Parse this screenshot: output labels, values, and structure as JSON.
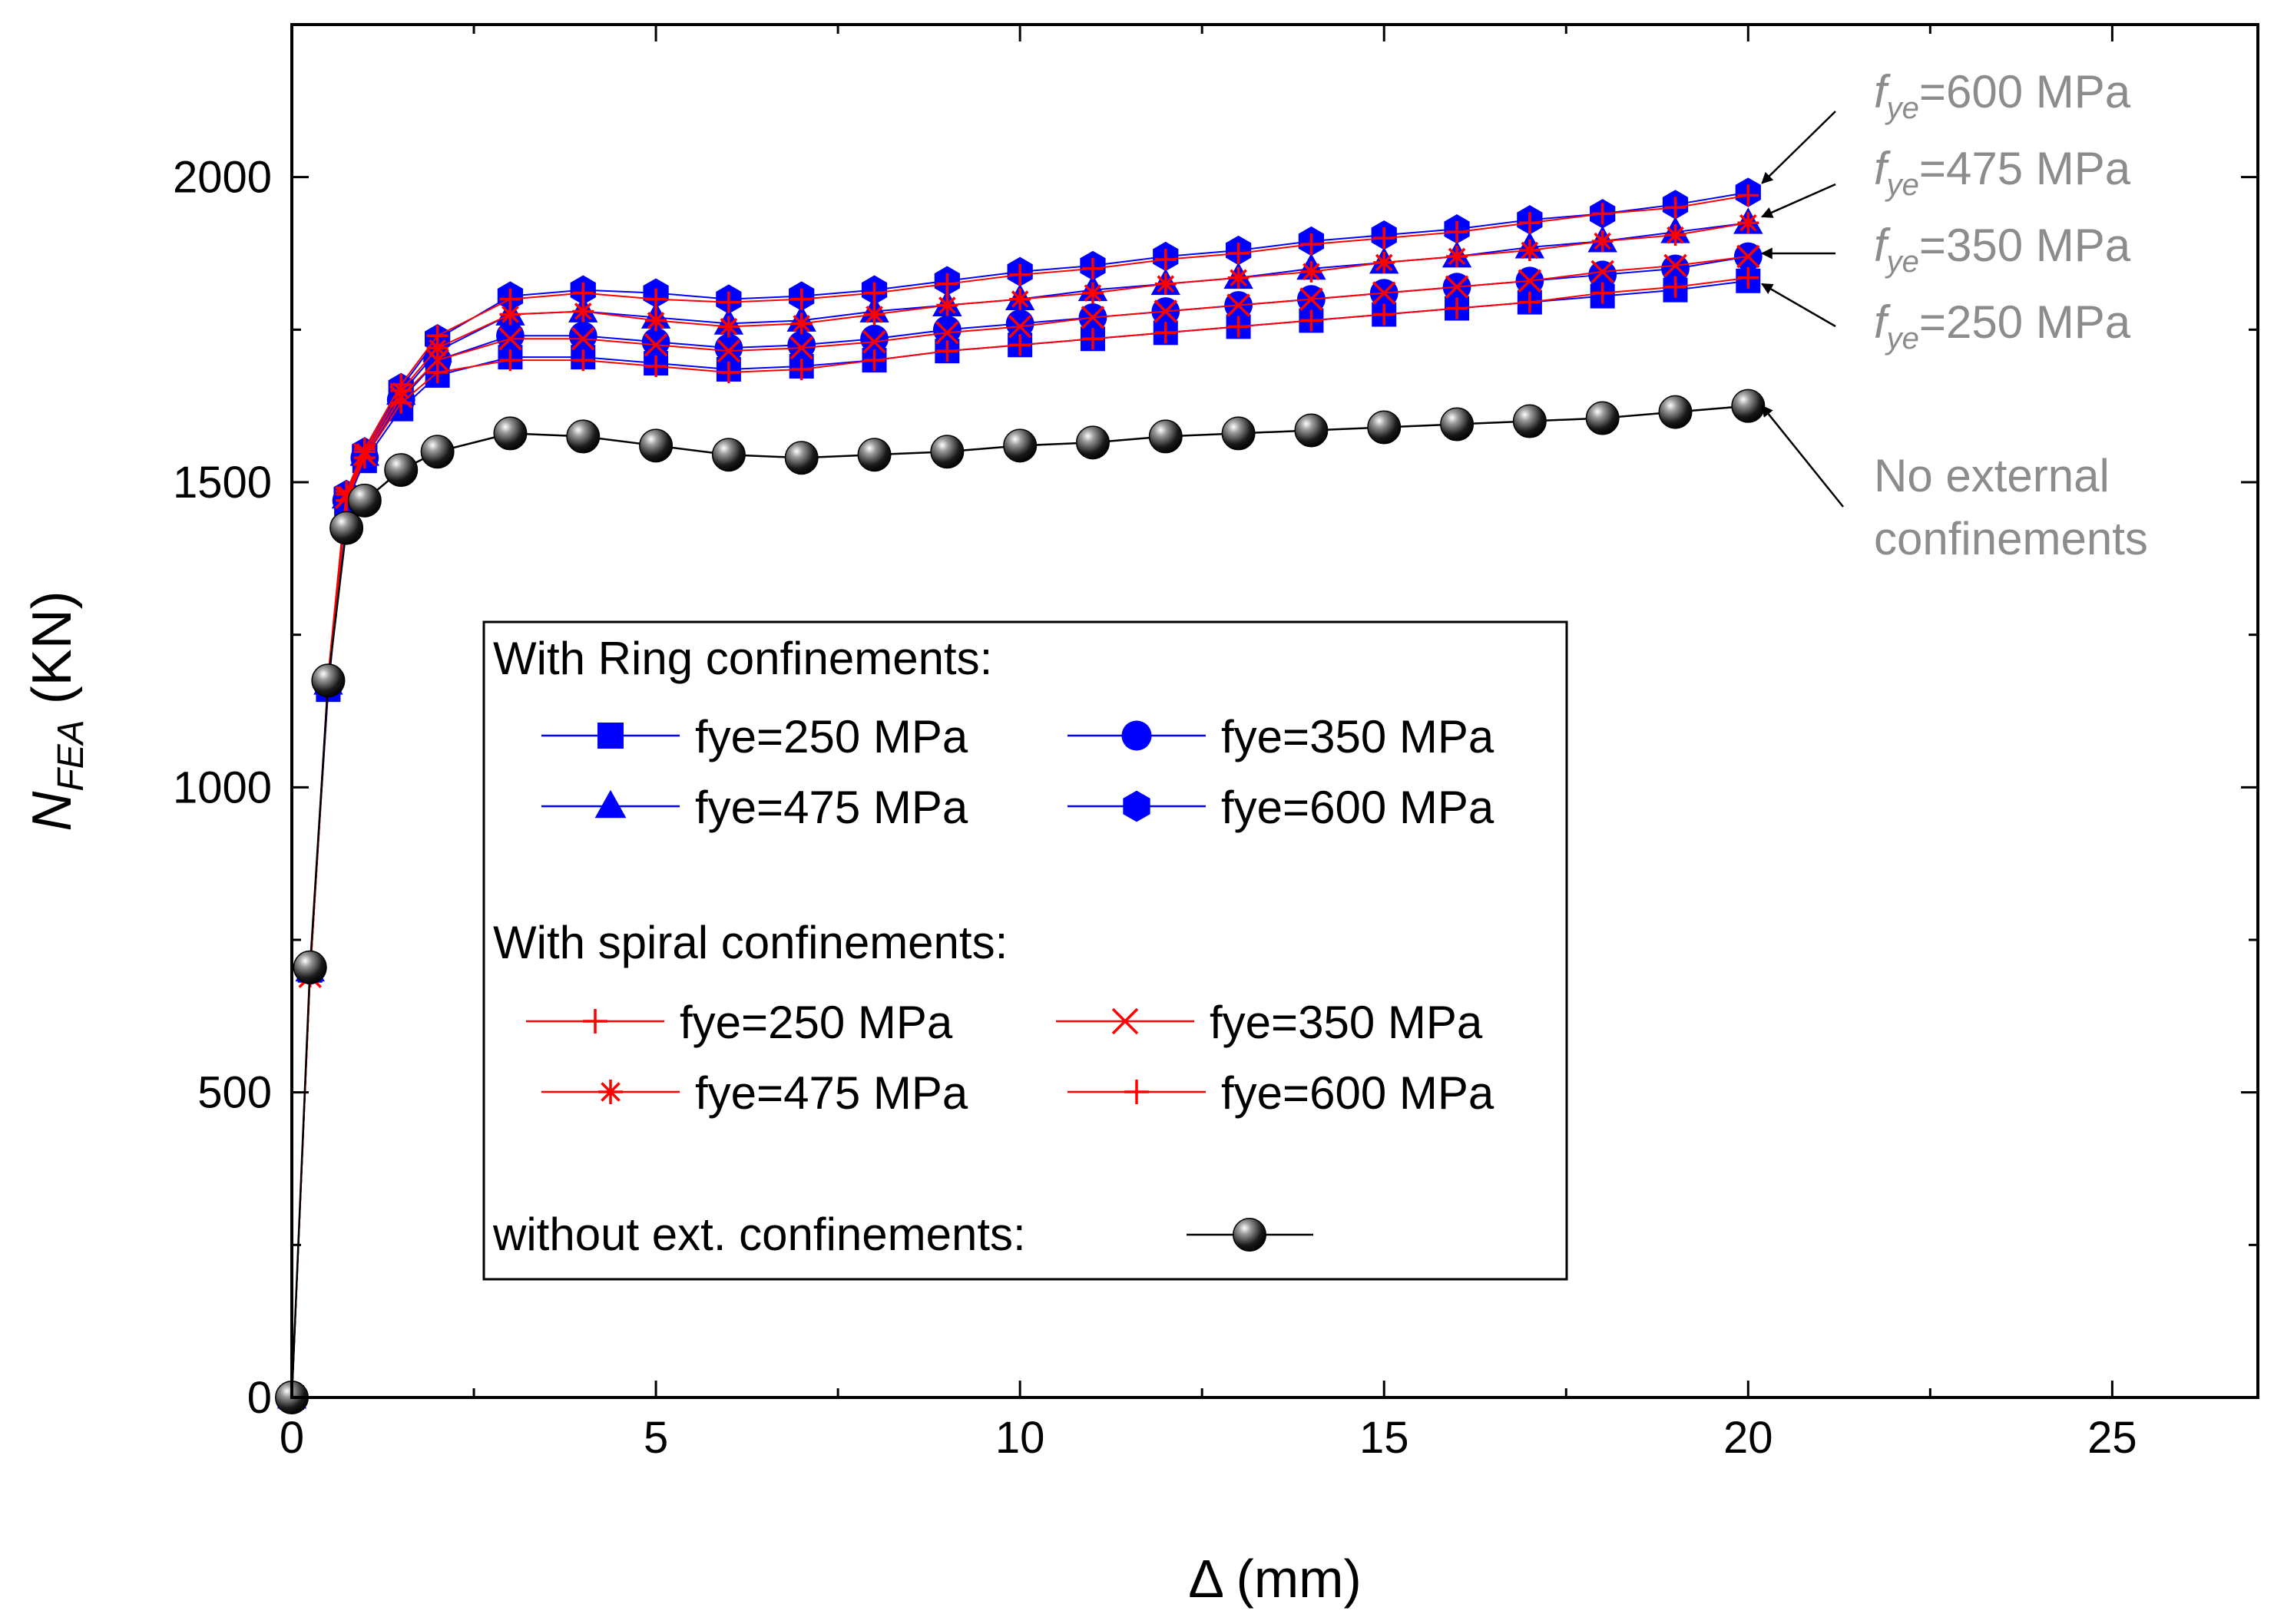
{
  "chart_data": {
    "type": "line",
    "title": "",
    "xlabel": "Δ (mm)",
    "ylabel_main": "N",
    "ylabel_sub": "FEA",
    "ylabel_unit": " (KN)",
    "xlim": [
      0,
      27
    ],
    "ylim": [
      0,
      2250
    ],
    "xticks": [
      0,
      5,
      10,
      15,
      20,
      25
    ],
    "yticks": [
      0,
      500,
      1000,
      1500,
      2000
    ],
    "x": [
      0,
      0.25,
      0.5,
      0.75,
      1,
      1.5,
      2,
      3,
      4,
      5,
      6,
      7,
      8,
      9,
      10,
      11,
      12,
      13,
      14,
      15,
      16,
      17,
      18,
      19,
      20
    ],
    "series": [
      {
        "name": "fye=250 MPa",
        "group": "ring",
        "marker": "square",
        "color": "#0000ff",
        "values": [
          0,
          700,
          1160,
          1465,
          1535,
          1620,
          1675,
          1705,
          1705,
          1695,
          1685,
          1690,
          1700,
          1715,
          1725,
          1735,
          1745,
          1755,
          1765,
          1775,
          1785,
          1795,
          1805,
          1815,
          1830
        ]
      },
      {
        "name": "fye=350 MPa",
        "group": "ring",
        "marker": "circle",
        "color": "#0000ff",
        "values": [
          0,
          700,
          1165,
          1470,
          1540,
          1635,
          1700,
          1740,
          1740,
          1730,
          1720,
          1725,
          1735,
          1750,
          1760,
          1770,
          1780,
          1790,
          1800,
          1810,
          1820,
          1830,
          1840,
          1850,
          1870
        ]
      },
      {
        "name": "fye=475 MPa",
        "group": "ring",
        "marker": "triangle",
        "color": "#0000ff",
        "values": [
          0,
          700,
          1170,
          1475,
          1545,
          1645,
          1715,
          1775,
          1780,
          1770,
          1760,
          1765,
          1780,
          1790,
          1800,
          1815,
          1825,
          1835,
          1850,
          1860,
          1870,
          1885,
          1895,
          1910,
          1925
        ]
      },
      {
        "name": "fye=600 MPa",
        "group": "ring",
        "marker": "hexagon",
        "color": "#0000ff",
        "values": [
          0,
          700,
          1175,
          1480,
          1550,
          1655,
          1735,
          1805,
          1815,
          1810,
          1800,
          1805,
          1815,
          1830,
          1845,
          1855,
          1870,
          1880,
          1895,
          1905,
          1915,
          1930,
          1940,
          1955,
          1975
        ]
      },
      {
        "name": "fye=250 MPa",
        "group": "spiral",
        "marker": "plus",
        "color": "#ff0000",
        "values": [
          0,
          690,
          1170,
          1470,
          1540,
          1630,
          1680,
          1700,
          1700,
          1690,
          1680,
          1685,
          1700,
          1715,
          1725,
          1735,
          1745,
          1755,
          1765,
          1775,
          1785,
          1795,
          1810,
          1820,
          1835
        ]
      },
      {
        "name": "fye=350 MPa",
        "group": "spiral",
        "marker": "x",
        "color": "#ff0000",
        "values": [
          0,
          690,
          1175,
          1475,
          1545,
          1640,
          1700,
          1735,
          1735,
          1725,
          1715,
          1720,
          1730,
          1745,
          1755,
          1770,
          1780,
          1790,
          1800,
          1810,
          1820,
          1830,
          1845,
          1855,
          1870
        ]
      },
      {
        "name": "fye=475 MPa",
        "group": "spiral",
        "marker": "asterisk",
        "color": "#ff0000",
        "values": [
          0,
          690,
          1180,
          1480,
          1550,
          1650,
          1720,
          1775,
          1780,
          1765,
          1755,
          1760,
          1775,
          1790,
          1800,
          1810,
          1825,
          1835,
          1845,
          1860,
          1870,
          1880,
          1895,
          1905,
          1925
        ]
      },
      {
        "name": "fye=600 MPa",
        "group": "spiral",
        "marker": "plus",
        "color": "#ff0000",
        "values": [
          0,
          690,
          1185,
          1485,
          1555,
          1660,
          1740,
          1800,
          1810,
          1800,
          1795,
          1800,
          1810,
          1825,
          1840,
          1850,
          1865,
          1875,
          1890,
          1900,
          1910,
          1925,
          1940,
          1950,
          1970
        ]
      },
      {
        "name": "without ext. confinements",
        "group": "none",
        "marker": "sphere",
        "color": "#000000",
        "values": [
          0,
          705,
          1175,
          1425,
          1470,
          1520,
          1550,
          1580,
          1575,
          1560,
          1545,
          1540,
          1545,
          1550,
          1560,
          1565,
          1575,
          1580,
          1585,
          1590,
          1595,
          1600,
          1605,
          1615,
          1625
        ]
      }
    ],
    "legend": {
      "placement": "center",
      "ring_header": "With Ring confinements:",
      "spiral_header": "With spiral confinements:",
      "none_label": "without ext. confinements:"
    },
    "annotations": [
      {
        "f": "f",
        "sub": "ye",
        "rest": "=600 MPa",
        "target_x": 20,
        "target_y": 1990
      },
      {
        "f": "f",
        "sub": "ye",
        "rest": "=475 MPa",
        "target_x": 20,
        "target_y": 1935
      },
      {
        "f": "f",
        "sub": "ye",
        "rest": "=350 MPa",
        "target_x": 20,
        "target_y": 1875
      },
      {
        "f": "f",
        "sub": "ye",
        "rest": "=250 MPa",
        "target_x": 20,
        "target_y": 1825
      },
      {
        "line1": "No external",
        "line2": "confinements",
        "target_x": 20,
        "target_y": 1625
      }
    ]
  }
}
